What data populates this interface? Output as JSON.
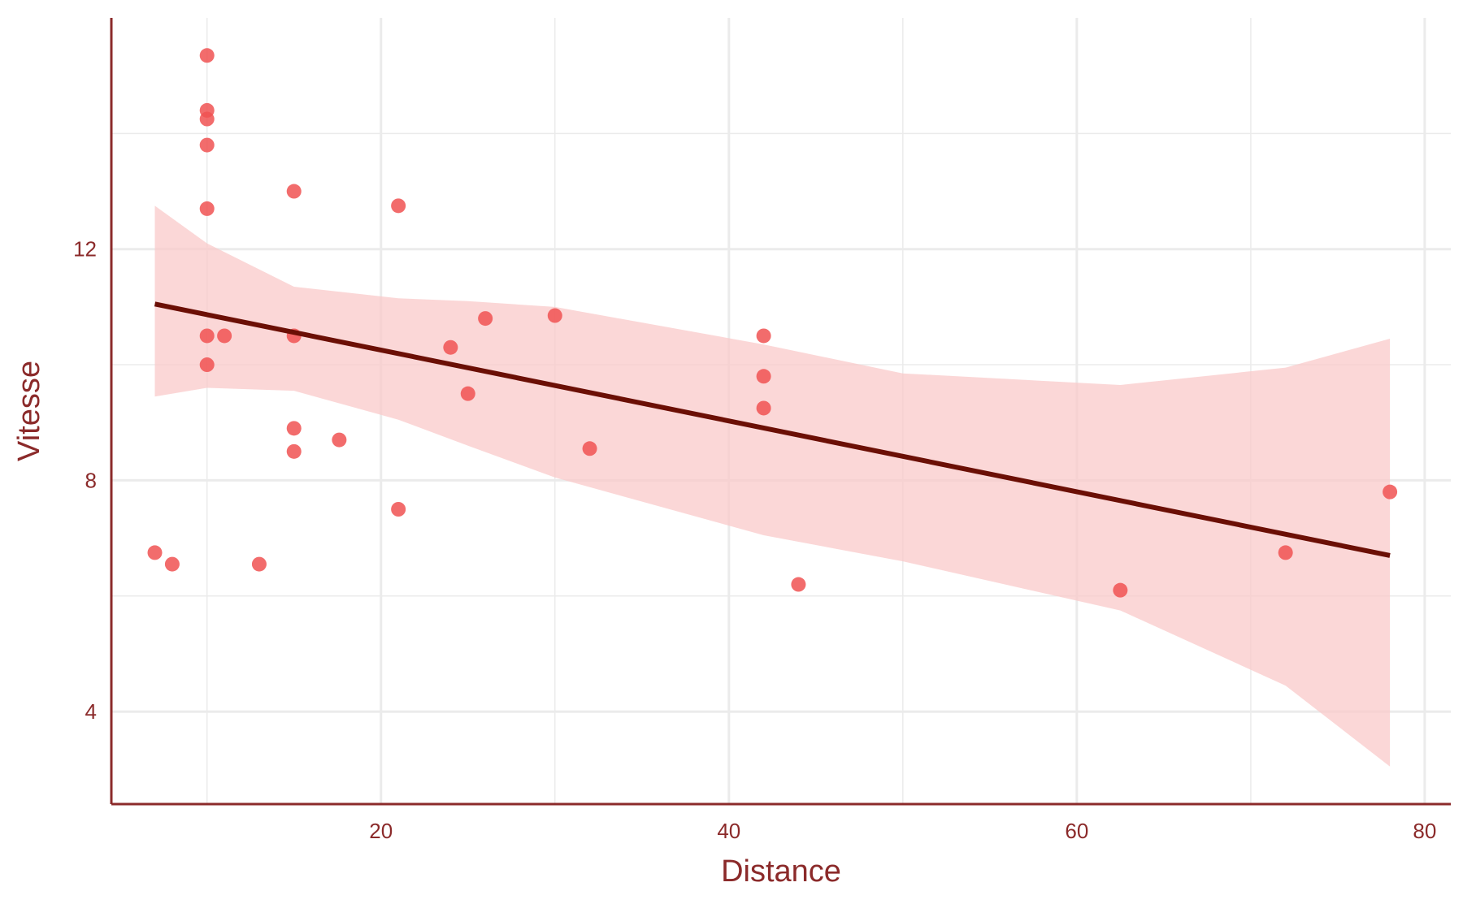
{
  "chart_data": {
    "type": "scatter",
    "title": "",
    "xlabel": "Distance",
    "ylabel": "Vitesse",
    "xlim": [
      4.5,
      81.5
    ],
    "ylim": [
      2.4,
      16
    ],
    "x_ticks": [
      20,
      40,
      60,
      80
    ],
    "y_ticks": [
      4,
      8,
      12
    ],
    "x_minor_grid": [
      10,
      30,
      50,
      70
    ],
    "y_minor_grid": [
      6,
      10,
      14
    ],
    "grid": true,
    "legend": "none",
    "colors": {
      "points": "#F05252",
      "trend_line": "#6B0F05",
      "confidence_band": "#F9C7C7",
      "axis": "#8B2A2A",
      "grid": "#EBEBEB"
    },
    "points": [
      {
        "x": 7,
        "y": 6.75
      },
      {
        "x": 8,
        "y": 6.55
      },
      {
        "x": 10,
        "y": 15.35
      },
      {
        "x": 10,
        "y": 14.4
      },
      {
        "x": 10,
        "y": 14.25
      },
      {
        "x": 10,
        "y": 13.8
      },
      {
        "x": 10,
        "y": 12.7
      },
      {
        "x": 10,
        "y": 10.5
      },
      {
        "x": 10,
        "y": 10
      },
      {
        "x": 11,
        "y": 10.5
      },
      {
        "x": 13,
        "y": 6.55
      },
      {
        "x": 15,
        "y": 13
      },
      {
        "x": 15,
        "y": 10.5
      },
      {
        "x": 15,
        "y": 8.9
      },
      {
        "x": 15,
        "y": 8.5
      },
      {
        "x": 17.6,
        "y": 8.7
      },
      {
        "x": 21,
        "y": 12.75
      },
      {
        "x": 21,
        "y": 7.5
      },
      {
        "x": 24,
        "y": 10.3
      },
      {
        "x": 25,
        "y": 9.5
      },
      {
        "x": 26,
        "y": 10.8
      },
      {
        "x": 30,
        "y": 10.85
      },
      {
        "x": 32,
        "y": 8.55
      },
      {
        "x": 42,
        "y": 10.5
      },
      {
        "x": 42,
        "y": 9.8
      },
      {
        "x": 42,
        "y": 9.25
      },
      {
        "x": 44,
        "y": 6.2
      },
      {
        "x": 62.5,
        "y": 6.1
      },
      {
        "x": 72,
        "y": 6.75
      },
      {
        "x": 78,
        "y": 7.8
      }
    ],
    "trend_line": {
      "x": [
        7,
        78
      ],
      "y": [
        11.05,
        6.7
      ]
    },
    "confidence_band": {
      "x": [
        7,
        10,
        15,
        21,
        25,
        30,
        42,
        50,
        62.5,
        72,
        78
      ],
      "upper": [
        12.75,
        12.1,
        11.35,
        11.15,
        11.1,
        11,
        10.35,
        9.85,
        9.65,
        9.95,
        10.45
      ],
      "lower": [
        9.45,
        9.6,
        9.55,
        9.05,
        8.6,
        8.05,
        7.05,
        6.6,
        5.75,
        4.45,
        3.05
      ]
    }
  }
}
